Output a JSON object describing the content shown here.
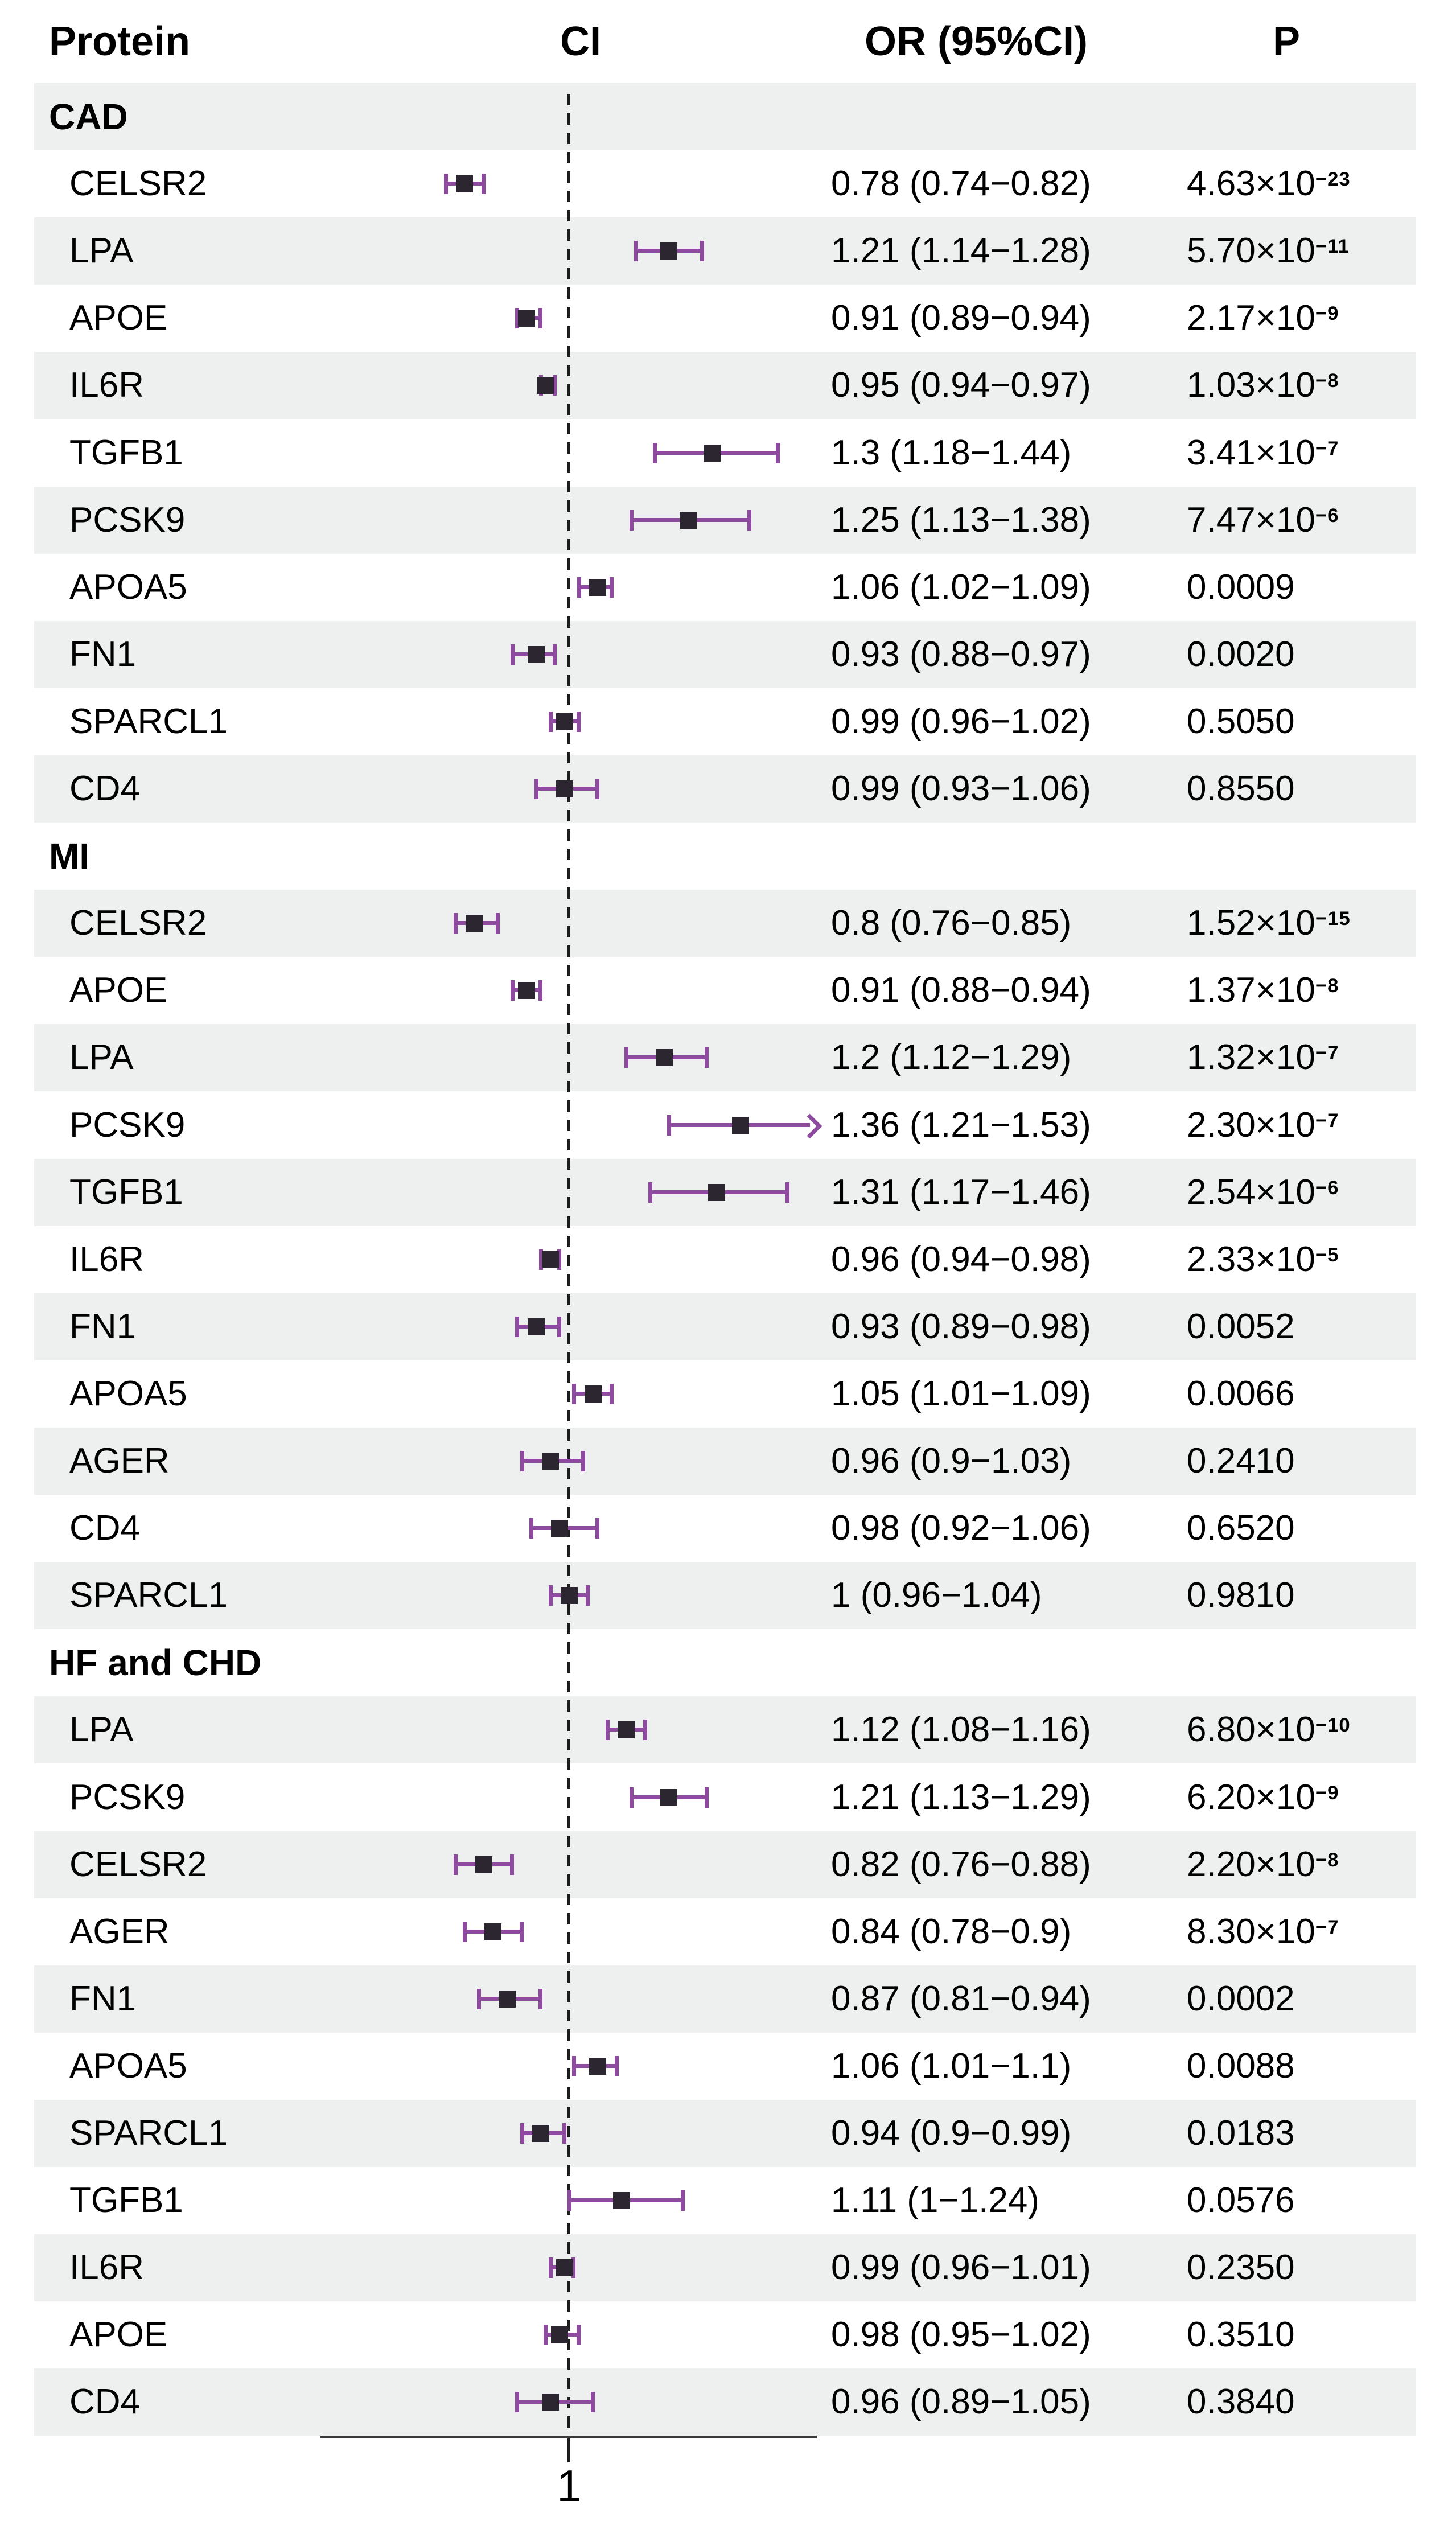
{
  "header": {
    "protein": "Protein",
    "ci": "CI",
    "or": "OR (95%CI)",
    "p": "P"
  },
  "axis": {
    "tick_label": "1"
  },
  "colors": {
    "whisker": "#8d4a9e",
    "marker": "#2b2630",
    "stripe": "#edf0ee",
    "dashed_line": "#1c1c1c",
    "axis_line": "#3a3a3a",
    "text": "#000000"
  },
  "chart_data": {
    "type": "scatter",
    "variant": "forest-plot",
    "title": "",
    "xlabel": "",
    "legend": [],
    "grid": false,
    "x_axis": {
      "scale": "linear",
      "range": [
        0.48,
        1.53
      ],
      "reference_line": 1,
      "tick_labels": [
        "1"
      ]
    },
    "columns": [
      "Protein",
      "CI",
      "OR (95%CI)",
      "P"
    ],
    "sections": [
      {
        "label": "CAD",
        "rows": [
          {
            "protein": "CELSR2",
            "or": 0.78,
            "lo": 0.74,
            "hi": 0.82,
            "or_text": "0.78 (0.74−0.82)",
            "p_base": "4.63×10",
            "p_exp": "−23"
          },
          {
            "protein": "LPA",
            "or": 1.21,
            "lo": 1.14,
            "hi": 1.28,
            "or_text": "1.21 (1.14−1.28)",
            "p_base": "5.70×10",
            "p_exp": "−11"
          },
          {
            "protein": "APOE",
            "or": 0.91,
            "lo": 0.89,
            "hi": 0.94,
            "or_text": "0.91 (0.89−0.94)",
            "p_base": "2.17×10",
            "p_exp": "−9"
          },
          {
            "protein": "IL6R",
            "or": 0.95,
            "lo": 0.94,
            "hi": 0.97,
            "or_text": "0.95 (0.94−0.97)",
            "p_base": "1.03×10",
            "p_exp": "−8"
          },
          {
            "protein": "TGFB1",
            "or": 1.3,
            "lo": 1.18,
            "hi": 1.44,
            "or_text": "1.3 (1.18−1.44)",
            "p_base": "3.41×10",
            "p_exp": "−7"
          },
          {
            "protein": "PCSK9",
            "or": 1.25,
            "lo": 1.13,
            "hi": 1.38,
            "or_text": "1.25 (1.13−1.38)",
            "p_base": "7.47×10",
            "p_exp": "−6"
          },
          {
            "protein": "APOA5",
            "or": 1.06,
            "lo": 1.02,
            "hi": 1.09,
            "or_text": "1.06 (1.02−1.09)",
            "p_base": "0.0009",
            "p_exp": ""
          },
          {
            "protein": "FN1",
            "or": 0.93,
            "lo": 0.88,
            "hi": 0.97,
            "or_text": "0.93 (0.88−0.97)",
            "p_base": "0.0020",
            "p_exp": ""
          },
          {
            "protein": "SPARCL1",
            "or": 0.99,
            "lo": 0.96,
            "hi": 1.02,
            "or_text": "0.99 (0.96−1.02)",
            "p_base": "0.5050",
            "p_exp": ""
          },
          {
            "protein": "CD4",
            "or": 0.99,
            "lo": 0.93,
            "hi": 1.06,
            "or_text": "0.99 (0.93−1.06)",
            "p_base": "0.8550",
            "p_exp": ""
          }
        ]
      },
      {
        "label": "MI",
        "rows": [
          {
            "protein": "CELSR2",
            "or": 0.8,
            "lo": 0.76,
            "hi": 0.85,
            "or_text": "0.8 (0.76−0.85)",
            "p_base": "1.52×10",
            "p_exp": "−15"
          },
          {
            "protein": "APOE",
            "or": 0.91,
            "lo": 0.88,
            "hi": 0.94,
            "or_text": "0.91 (0.88−0.94)",
            "p_base": "1.37×10",
            "p_exp": "−8"
          },
          {
            "protein": "LPA",
            "or": 1.2,
            "lo": 1.12,
            "hi": 1.29,
            "or_text": "1.2 (1.12−1.29)",
            "p_base": "1.32×10",
            "p_exp": "−7"
          },
          {
            "protein": "PCSK9",
            "or": 1.36,
            "lo": 1.21,
            "hi": 1.53,
            "or_text": "1.36 (1.21−1.53)",
            "p_base": "2.30×10",
            "p_exp": "−7",
            "arrow": true
          },
          {
            "protein": "TGFB1",
            "or": 1.31,
            "lo": 1.17,
            "hi": 1.46,
            "or_text": "1.31 (1.17−1.46)",
            "p_base": "2.54×10",
            "p_exp": "−6"
          },
          {
            "protein": "IL6R",
            "or": 0.96,
            "lo": 0.94,
            "hi": 0.98,
            "or_text": "0.96 (0.94−0.98)",
            "p_base": "2.33×10",
            "p_exp": "−5"
          },
          {
            "protein": "FN1",
            "or": 0.93,
            "lo": 0.89,
            "hi": 0.98,
            "or_text": "0.93 (0.89−0.98)",
            "p_base": "0.0052",
            "p_exp": ""
          },
          {
            "protein": "APOA5",
            "or": 1.05,
            "lo": 1.01,
            "hi": 1.09,
            "or_text": "1.05 (1.01−1.09)",
            "p_base": "0.0066",
            "p_exp": ""
          },
          {
            "protein": "AGER",
            "or": 0.96,
            "lo": 0.9,
            "hi": 1.03,
            "or_text": "0.96 (0.9−1.03)",
            "p_base": "0.2410",
            "p_exp": ""
          },
          {
            "protein": "CD4",
            "or": 0.98,
            "lo": 0.92,
            "hi": 1.06,
            "or_text": "0.98 (0.92−1.06)",
            "p_base": "0.6520",
            "p_exp": ""
          },
          {
            "protein": "SPARCL1",
            "or": 1.0,
            "lo": 0.96,
            "hi": 1.04,
            "or_text": "1 (0.96−1.04)",
            "p_base": "0.9810",
            "p_exp": ""
          }
        ]
      },
      {
        "label": "HF and CHD",
        "rows": [
          {
            "protein": "LPA",
            "or": 1.12,
            "lo": 1.08,
            "hi": 1.16,
            "or_text": "1.12 (1.08−1.16)",
            "p_base": "6.80×10",
            "p_exp": "−10"
          },
          {
            "protein": "PCSK9",
            "or": 1.21,
            "lo": 1.13,
            "hi": 1.29,
            "or_text": "1.21 (1.13−1.29)",
            "p_base": "6.20×10",
            "p_exp": "−9"
          },
          {
            "protein": "CELSR2",
            "or": 0.82,
            "lo": 0.76,
            "hi": 0.88,
            "or_text": "0.82 (0.76−0.88)",
            "p_base": "2.20×10",
            "p_exp": "−8"
          },
          {
            "protein": "AGER",
            "or": 0.84,
            "lo": 0.78,
            "hi": 0.9,
            "or_text": "0.84 (0.78−0.9)",
            "p_base": "8.30×10",
            "p_exp": "−7"
          },
          {
            "protein": "FN1",
            "or": 0.87,
            "lo": 0.81,
            "hi": 0.94,
            "or_text": "0.87 (0.81−0.94)",
            "p_base": "0.0002",
            "p_exp": ""
          },
          {
            "protein": "APOA5",
            "or": 1.06,
            "lo": 1.01,
            "hi": 1.1,
            "or_text": "1.06 (1.01−1.1)",
            "p_base": "0.0088",
            "p_exp": ""
          },
          {
            "protein": "SPARCL1",
            "or": 0.94,
            "lo": 0.9,
            "hi": 0.99,
            "or_text": "0.94 (0.9−0.99)",
            "p_base": "0.0183",
            "p_exp": ""
          },
          {
            "protein": "TGFB1",
            "or": 1.11,
            "lo": 1.0,
            "hi": 1.24,
            "or_text": "1.11 (1−1.24)",
            "p_base": "0.0576",
            "p_exp": ""
          },
          {
            "protein": "IL6R",
            "or": 0.99,
            "lo": 0.96,
            "hi": 1.01,
            "or_text": "0.99 (0.96−1.01)",
            "p_base": "0.2350",
            "p_exp": ""
          },
          {
            "protein": "APOE",
            "or": 0.98,
            "lo": 0.95,
            "hi": 1.02,
            "or_text": "0.98 (0.95−1.02)",
            "p_base": "0.3510",
            "p_exp": ""
          },
          {
            "protein": "CD4",
            "or": 0.96,
            "lo": 0.89,
            "hi": 1.05,
            "or_text": "0.96 (0.89−1.05)",
            "p_base": "0.3840",
            "p_exp": ""
          }
        ]
      }
    ]
  }
}
